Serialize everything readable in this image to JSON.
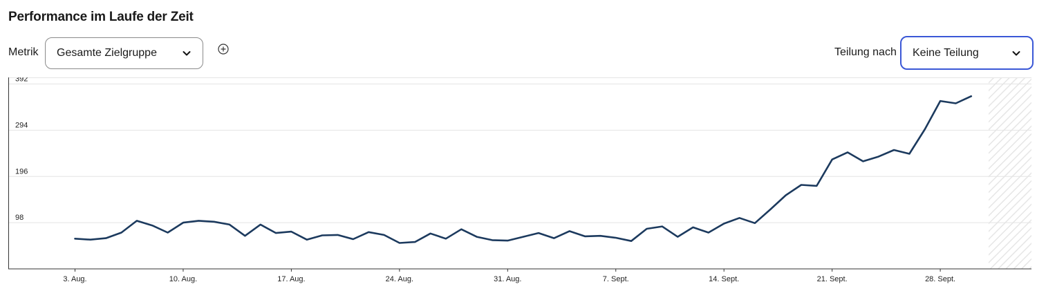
{
  "header": {
    "title": "Performance im Laufe der Zeit"
  },
  "controls": {
    "metric_label": "Metrik",
    "metric_value": "Gesamte Zielgruppe",
    "add_icon": "plus-circle-icon",
    "split_label": "Teilung nach",
    "split_value": "Keine Teilung",
    "chevron_icon": "chevron-down-icon",
    "focus_color": "#3a57d6"
  },
  "chart_data": {
    "type": "line",
    "title": "",
    "xlabel": "",
    "ylabel": "",
    "y_ticks": [
      "98",
      "196",
      "294",
      "392"
    ],
    "ylim": [
      0,
      392
    ],
    "x_tick_labels": [
      "3. Aug.",
      "10. Aug.",
      "17. Aug.",
      "24. Aug.",
      "31. Aug.",
      "7. Sept.",
      "14. Sept.",
      "21. Sept.",
      "28. Sept."
    ],
    "grid": true,
    "line_color": "#1c3a5e",
    "series": [
      {
        "name": "",
        "x": [
          "3. Aug.",
          "4. Aug.",
          "5. Aug.",
          "6. Aug.",
          "7. Aug.",
          "8. Aug.",
          "9. Aug.",
          "10. Aug.",
          "11. Aug.",
          "12. Aug.",
          "13. Aug.",
          "14. Aug.",
          "15. Aug.",
          "16. Aug.",
          "17. Aug.",
          "18. Aug.",
          "19. Aug.",
          "20. Aug.",
          "21. Aug.",
          "22. Aug.",
          "23. Aug.",
          "24. Aug.",
          "25. Aug.",
          "26. Aug.",
          "27. Aug.",
          "28. Aug.",
          "29. Aug.",
          "30. Aug.",
          "31. Aug.",
          "1. Sept.",
          "2. Sept.",
          "3. Sept.",
          "4. Sept.",
          "5. Sept.",
          "6. Sept.",
          "7. Sept.",
          "8. Sept.",
          "9. Sept.",
          "10. Sept.",
          "11. Sept.",
          "12. Sept.",
          "13. Sept.",
          "14. Sept.",
          "15. Sept.",
          "16. Sept.",
          "17. Sept.",
          "18. Sept.",
          "19. Sept.",
          "20. Sept.",
          "21. Sept.",
          "22. Sept.",
          "23. Sept.",
          "24. Sept.",
          "25. Sept.",
          "26. Sept.",
          "27. Sept.",
          "28. Sept.",
          "29. Sept.",
          "30. Sept."
        ],
        "values": [
          64,
          62,
          65,
          77,
          102,
          92,
          77,
          98,
          102,
          100,
          94,
          70,
          94,
          76,
          79,
          62,
          71,
          72,
          63,
          78,
          72,
          55,
          57,
          75,
          64,
          84,
          68,
          61,
          60,
          68,
          76,
          65,
          80,
          69,
          70,
          66,
          59,
          85,
          90,
          68,
          88,
          77,
          96,
          108,
          97,
          126,
          156,
          178,
          176,
          232,
          247,
          228,
          238,
          252,
          244,
          296,
          356,
          351,
          366
        ]
      }
    ]
  }
}
